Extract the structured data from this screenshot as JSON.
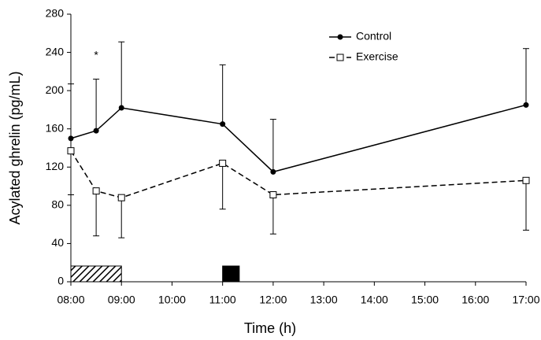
{
  "chart_data": {
    "type": "line",
    "x_label": "Time (h)",
    "y_label": "Acylated ghrelin (pg/mL)",
    "x": [
      8,
      8.5,
      9,
      11,
      12,
      17
    ],
    "xlim": [
      8,
      17
    ],
    "xticks": [
      {
        "value": 8,
        "label": "08:00"
      },
      {
        "value": 9,
        "label": "09:00"
      },
      {
        "value": 10,
        "label": "10:00"
      },
      {
        "value": 11,
        "label": "11:00"
      },
      {
        "value": 12,
        "label": "12:00"
      },
      {
        "value": 13,
        "label": "13:00"
      },
      {
        "value": 14,
        "label": "14:00"
      },
      {
        "value": 15,
        "label": "15:00"
      },
      {
        "value": 16,
        "label": "16:00"
      },
      {
        "value": 17,
        "label": "17:00"
      }
    ],
    "ylim": [
      0,
      280
    ],
    "yticks": [
      0,
      40,
      80,
      120,
      160,
      200,
      240,
      280
    ],
    "legend_position": "upper right",
    "series": [
      {
        "name": "Control",
        "color": "#000000",
        "marker": "filled-circle",
        "dash": "solid",
        "error_direction": "up",
        "values": [
          150,
          158,
          182,
          165,
          115,
          185
        ],
        "errors": [
          57,
          54,
          69,
          62,
          55,
          59
        ]
      },
      {
        "name": "Exercise",
        "color": "#000000",
        "marker": "open-square",
        "dash": "dashed",
        "error_direction": "down",
        "values": [
          137,
          95,
          88,
          124,
          91,
          106
        ],
        "errors": [
          46,
          47,
          42,
          48,
          41,
          52
        ]
      }
    ],
    "annotations": [
      {
        "text": "*",
        "series": 0,
        "point": 1
      }
    ],
    "periods": [
      {
        "start": 8,
        "end": 9,
        "pattern": "hatched"
      },
      {
        "start": 11,
        "end": 11.33,
        "pattern": "solid"
      }
    ]
  }
}
